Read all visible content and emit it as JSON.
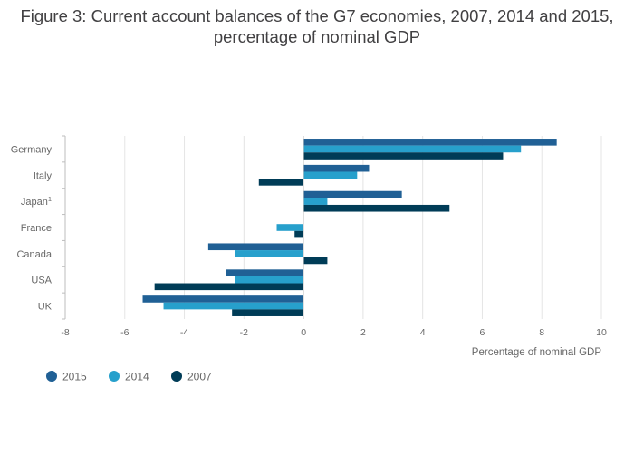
{
  "chart_data": {
    "type": "bar",
    "orientation": "horizontal",
    "title": "Figure 3: Current account balances of the G7 economies, 2007, 2014 and 2015, percentage of nominal GDP",
    "xlabel": "Percentage of nominal GDP",
    "ylabel": "",
    "categories": [
      "Germany",
      "Italy",
      "Japan",
      "France",
      "Canada",
      "USA",
      "UK"
    ],
    "category_footnotes": {
      "Japan": "1"
    },
    "xlim": [
      -8,
      10
    ],
    "xticks": [
      -8,
      -6,
      -4,
      -2,
      0,
      2,
      4,
      6,
      8,
      10
    ],
    "grid": true,
    "legend_position": "bottom-left",
    "series": [
      {
        "name": "2015",
        "color": "#206095",
        "values": [
          8.5,
          2.2,
          3.3,
          0.0,
          -3.2,
          -2.6,
          -5.4
        ]
      },
      {
        "name": "2014",
        "color": "#27a0cc",
        "values": [
          7.3,
          1.8,
          0.8,
          -0.9,
          -2.3,
          -2.3,
          -4.7
        ]
      },
      {
        "name": "2007",
        "color": "#003c57",
        "values": [
          6.7,
          -1.5,
          4.9,
          -0.3,
          0.8,
          -5.0,
          -2.4
        ]
      }
    ]
  }
}
